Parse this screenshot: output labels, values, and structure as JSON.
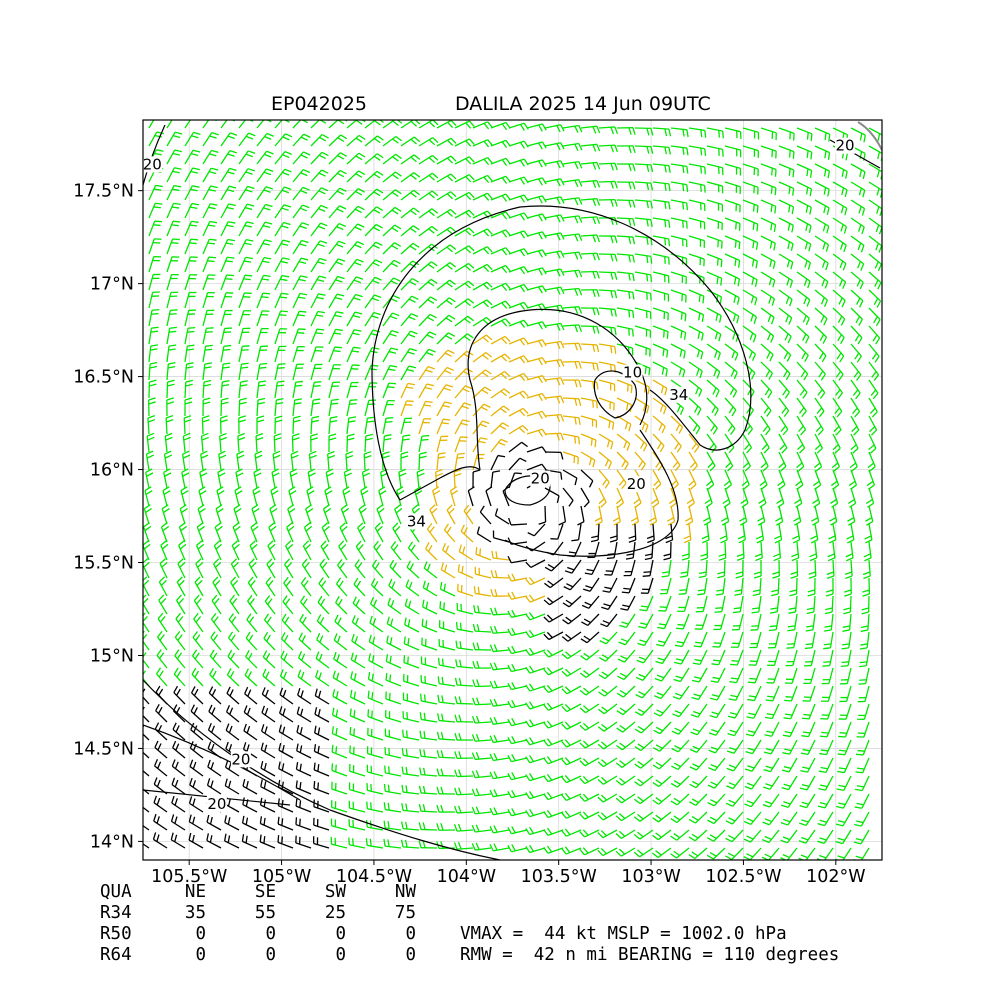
{
  "title": {
    "storm_id": "EP042025",
    "storm_info": "DALILA 2025 14 Jun 09UTC"
  },
  "map": {
    "lon_range": [
      -105.75,
      -101.75
    ],
    "lat_range": [
      13.9,
      17.88
    ],
    "lon_ticks": [
      -105.5,
      -105.0,
      -104.5,
      -104.0,
      -103.5,
      -103.0,
      -102.5,
      -102.0
    ],
    "lon_tick_labels": [
      "105.5°W",
      "105°W",
      "104.5°W",
      "104°W",
      "103.5°W",
      "103°W",
      "102.5°W",
      "102°W"
    ],
    "lat_ticks": [
      14.0,
      14.5,
      15.0,
      15.5,
      16.0,
      16.5,
      17.0,
      17.5
    ],
    "lat_tick_labels": [
      "14°N",
      "14.5°N",
      "15°N",
      "15.5°N",
      "16°N",
      "16.5°N",
      "17°N",
      "17.5°N"
    ],
    "grid": true,
    "center": {
      "lon": -103.65,
      "lat": 15.82
    },
    "wind_barbs": {
      "colors": {
        "below_34kt": "#00e600",
        "34_to_50kt": "#e6b400",
        "above_50kt_or_weak": "#000000"
      }
    },
    "contour_labels": [
      {
        "text": "20",
        "lon": -105.7,
        "lat": 17.62
      },
      {
        "text": "20",
        "lon": -101.95,
        "lat": 17.72
      },
      {
        "text": "34",
        "lon": -104.27,
        "lat": 15.7
      },
      {
        "text": "20",
        "lon": -103.6,
        "lat": 15.93
      },
      {
        "text": "10",
        "lon": -103.1,
        "lat": 16.5
      },
      {
        "text": "34",
        "lon": -102.85,
        "lat": 16.38
      },
      {
        "text": "20",
        "lon": -103.08,
        "lat": 15.9
      },
      {
        "text": "20",
        "lon": -105.22,
        "lat": 14.42
      },
      {
        "text": "20",
        "lon": -105.35,
        "lat": 14.18
      }
    ]
  },
  "radii": {
    "header": {
      "label": "QUA",
      "quadrants": [
        "NE",
        "SE",
        "SW",
        "NW"
      ]
    },
    "rows": [
      {
        "label": "R34",
        "values": [
          "35",
          "55",
          "25",
          "75"
        ]
      },
      {
        "label": "R50",
        "values": [
          "0",
          "0",
          "0",
          "0"
        ]
      },
      {
        "label": "R64",
        "values": [
          "0",
          "0",
          "0",
          "0"
        ]
      }
    ]
  },
  "summary": {
    "line1": "VMAX =  44 kt MSLP = 1002.0 hPa",
    "line2": "RMW =  42 n mi BEARING = 110 degrees"
  }
}
